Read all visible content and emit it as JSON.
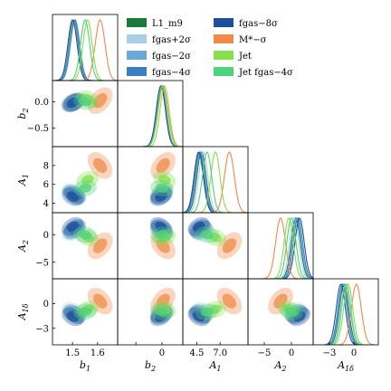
{
  "chart_data": {
    "type": "corner",
    "parameters": [
      {
        "key": "b1",
        "label": "b",
        "sub": "1",
        "range": [
          1.42,
          1.68
        ],
        "ticks": [
          1.5,
          1.6
        ],
        "tick_labels": [
          "1.5",
          "1.6"
        ]
      },
      {
        "key": "b2",
        "label": "b",
        "sub": "2",
        "range": [
          -0.85,
          0.4
        ],
        "ticks": [
          -0.5,
          0.0
        ],
        "tick_labels": [
          "−0.5",
          "0.0"
        ],
        "bottom_tick_labels": [
          "",
          "0"
        ]
      },
      {
        "key": "A1",
        "label": "A",
        "sub": "1",
        "range": [
          3.0,
          10.0
        ],
        "ticks": [
          4,
          6,
          8
        ],
        "tick_labels": [
          "4",
          "6",
          "8"
        ],
        "bottom_ticks": [
          4.5,
          7.0
        ],
        "bottom_tick_labels": [
          "4.5",
          "7.0"
        ]
      },
      {
        "key": "A2",
        "label": "A",
        "sub": "2",
        "range": [
          -8,
          4
        ],
        "ticks": [
          -5,
          0
        ],
        "tick_labels": [
          "−5",
          "0"
        ]
      },
      {
        "key": "A1d",
        "label": "A",
        "sub": "1δ",
        "range": [
          -5,
          3
        ],
        "ticks": [
          -3,
          0
        ],
        "tick_labels": [
          "−3",
          "0"
        ]
      }
    ],
    "series": [
      {
        "name": "L1_m9",
        "color": "#1a7a3a",
        "mean": [
          1.505,
          -0.02,
          5.0,
          0.8,
          -1.2
        ]
      },
      {
        "name": "fgas+2σ",
        "color": "#a8cfe8",
        "mean": [
          1.5,
          0.0,
          5.2,
          0.5,
          -0.9
        ]
      },
      {
        "name": "fgas−2σ",
        "color": "#6aa8d6",
        "mean": [
          1.507,
          -0.01,
          4.9,
          1.0,
          -1.3
        ]
      },
      {
        "name": "fgas−4σ",
        "color": "#3b7fbf",
        "mean": [
          1.51,
          0.0,
          4.8,
          1.2,
          -1.4
        ]
      },
      {
        "name": "fgas−8σ",
        "color": "#1f4f9a",
        "mean": [
          1.5,
          -0.02,
          4.7,
          1.5,
          -1.6
        ]
      },
      {
        "name": "M*−σ",
        "color": "#f0894a",
        "mean": [
          1.61,
          0.02,
          8.0,
          -2.0,
          0.3
        ]
      },
      {
        "name": "Jet",
        "color": "#86e04a",
        "mean": [
          1.56,
          0.05,
          6.5,
          -0.5,
          -0.7
        ]
      },
      {
        "name": "Jet fgas−4σ",
        "color": "#4fd27c",
        "mean": [
          1.55,
          0.0,
          5.6,
          0.0,
          -1.0
        ]
      }
    ],
    "legend": {
      "placement": "top-right",
      "columns": 2
    }
  }
}
